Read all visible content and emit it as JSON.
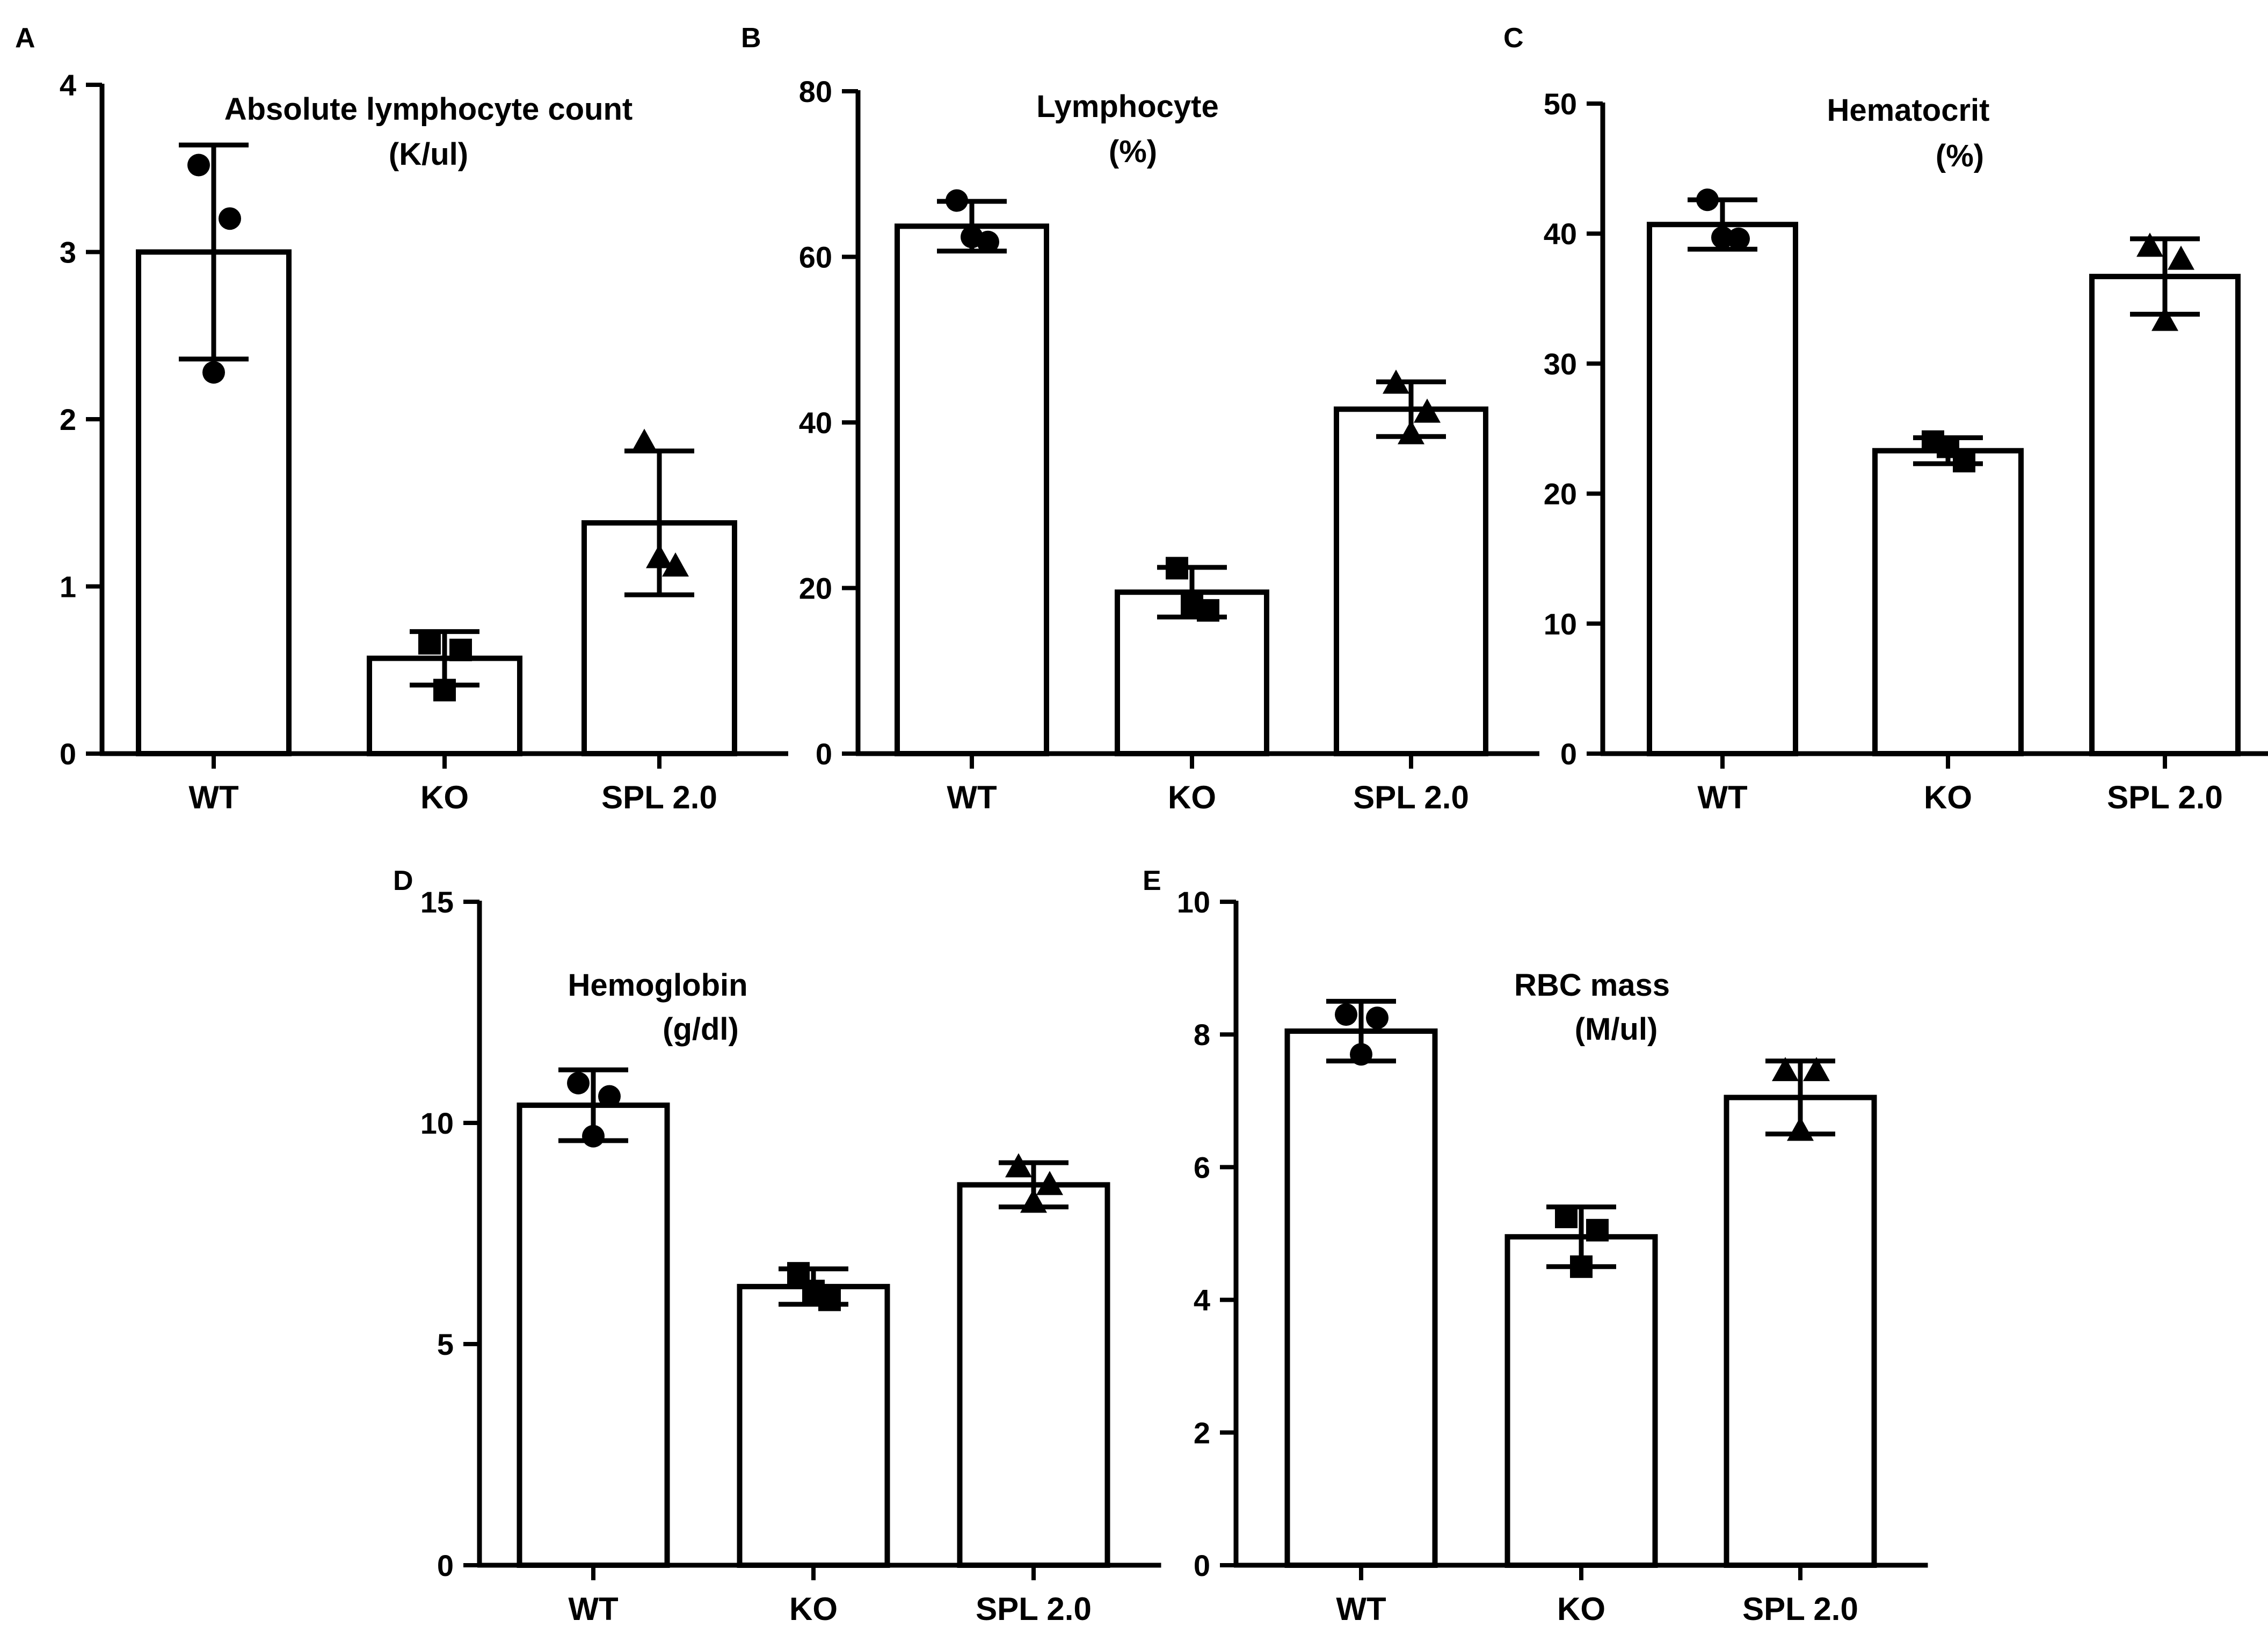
{
  "colors": {
    "ink": "#000000",
    "bar_fill": "#ffffff",
    "background": "#ffffff"
  },
  "chart_data": [
    {
      "type": "bar",
      "panel_letter": "A",
      "title": "Absolute lymphocyte count",
      "subtitle": "(K/ul)",
      "categories": [
        "WT",
        "KO",
        "SPL 2.0"
      ],
      "markers": [
        "circle",
        "square",
        "triangle"
      ],
      "values": [
        3.0,
        0.57,
        1.38
      ],
      "error": [
        0.64,
        0.16,
        0.43
      ],
      "points": [
        [
          3.52,
          3.2,
          2.28
        ],
        [
          0.66,
          0.62,
          0.38
        ],
        [
          1.86,
          1.12,
          1.17
        ]
      ],
      "ylim": [
        0,
        4
      ],
      "yticks": [
        "0",
        "1",
        "2",
        "3",
        "4"
      ]
    },
    {
      "type": "bar",
      "panel_letter": "B",
      "title": "Lymphocyte",
      "subtitle": "(%)",
      "categories": [
        "WT",
        "KO",
        "SPL 2.0"
      ],
      "markers": [
        "circle",
        "square",
        "triangle"
      ],
      "values": [
        63.7,
        19.5,
        41.6
      ],
      "error": [
        3.0,
        3.0,
        3.3
      ],
      "points": [
        [
          66.8,
          61.8,
          62.4
        ],
        [
          22.4,
          17.3,
          18.0
        ],
        [
          44.7,
          41.2,
          38.6
        ]
      ],
      "ylim": [
        0,
        80
      ],
      "yticks": [
        "0",
        "20",
        "40",
        "60",
        "80"
      ]
    },
    {
      "type": "bar",
      "panel_letter": "C",
      "title": "Hematocrit",
      "subtitle": "(%)",
      "categories": [
        "WT",
        "KO",
        "SPL 2.0"
      ],
      "markers": [
        "circle",
        "square",
        "triangle"
      ],
      "values": [
        40.7,
        23.3,
        36.7
      ],
      "error": [
        1.9,
        1.0,
        2.9
      ],
      "points": [
        [
          42.6,
          39.6,
          39.7
        ],
        [
          24.0,
          22.5,
          23.6
        ],
        [
          39.0,
          38.0,
          33.3
        ]
      ],
      "ylim": [
        0,
        50
      ],
      "yticks": [
        "0",
        "10",
        "20",
        "30",
        "40",
        "50"
      ]
    },
    {
      "type": "bar",
      "panel_letter": "D",
      "title": "Hemoglobin",
      "subtitle": "(g/dl)",
      "categories": [
        "WT",
        "KO",
        "SPL 2.0"
      ],
      "markers": [
        "circle",
        "square",
        "triangle"
      ],
      "values": [
        10.4,
        6.3,
        8.6
      ],
      "error": [
        0.8,
        0.4,
        0.5
      ],
      "points": [
        [
          10.9,
          10.6,
          9.7
        ],
        [
          6.6,
          6.0,
          6.2
        ],
        [
          9.0,
          8.6,
          8.2
        ]
      ],
      "ylim": [
        0,
        15
      ],
      "yticks": [
        "0",
        "5",
        "10",
        "15"
      ]
    },
    {
      "type": "bar",
      "panel_letter": "E",
      "title": "RBC mass",
      "subtitle": "(M/ul)",
      "categories": [
        "WT",
        "KO",
        "SPL 2.0"
      ],
      "markers": [
        "circle",
        "square",
        "triangle"
      ],
      "values": [
        8.05,
        4.95,
        7.05
      ],
      "error": [
        0.45,
        0.45,
        0.55
      ],
      "points": [
        [
          8.3,
          8.25,
          7.7
        ],
        [
          5.25,
          5.05,
          4.5
        ],
        [
          7.45,
          7.45,
          6.55
        ]
      ],
      "ylim": [
        0,
        10
      ],
      "yticks": [
        "0",
        "2",
        "4",
        "6",
        "8",
        "10"
      ]
    }
  ]
}
